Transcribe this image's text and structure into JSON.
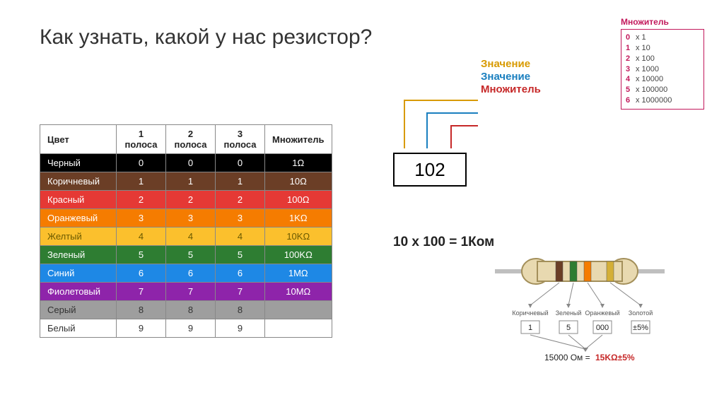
{
  "title": "Как узнать, какой у нас резистор?",
  "multiplier_box": {
    "header": "Множитель",
    "rows": [
      {
        "digit": "0",
        "text": "x 1"
      },
      {
        "digit": "1",
        "text": "x 10"
      },
      {
        "digit": "2",
        "text": "x 100"
      },
      {
        "digit": "3",
        "text": "x 1000"
      },
      {
        "digit": "4",
        "text": "x 10000"
      },
      {
        "digit": "5",
        "text": "x 100000"
      },
      {
        "digit": "6",
        "text": "x 1000000"
      }
    ],
    "border_color": "#c2185b",
    "digit_color": "#c2185b"
  },
  "color_table": {
    "columns": [
      "Цвет",
      "1 полоса",
      "2 полоса",
      "3 полоса",
      "Множитель"
    ],
    "rows": [
      {
        "name": "Черный",
        "bg": "#000000",
        "fg": "#ffffff",
        "b1": "0",
        "b2": "0",
        "b3": "0",
        "mult": "1Ω"
      },
      {
        "name": "Коричневый",
        "bg": "#6b3e26",
        "fg": "#ffffff",
        "b1": "1",
        "b2": "1",
        "b3": "1",
        "mult": "10Ω"
      },
      {
        "name": "Красный",
        "bg": "#e53935",
        "fg": "#ffffff",
        "b1": "2",
        "b2": "2",
        "b3": "2",
        "mult": "100Ω"
      },
      {
        "name": "Оранжевый",
        "bg": "#f57c00",
        "fg": "#ffffff",
        "b1": "3",
        "b2": "3",
        "b3": "3",
        "mult": "1KΩ"
      },
      {
        "name": "Желтый",
        "bg": "#fbc02d",
        "fg": "#6b5a00",
        "b1": "4",
        "b2": "4",
        "b3": "4",
        "mult": "10KΩ"
      },
      {
        "name": "Зеленый",
        "bg": "#2e7d32",
        "fg": "#ffffff",
        "b1": "5",
        "b2": "5",
        "b3": "5",
        "mult": "100KΩ"
      },
      {
        "name": "Синий",
        "bg": "#1e88e5",
        "fg": "#ffffff",
        "b1": "6",
        "b2": "6",
        "b3": "6",
        "mult": "1MΩ"
      },
      {
        "name": "Фиолетовый",
        "bg": "#8e24aa",
        "fg": "#ffffff",
        "b1": "7",
        "b2": "7",
        "b3": "7",
        "mult": "10MΩ"
      },
      {
        "name": "Серый",
        "bg": "#9e9e9e",
        "fg": "#333333",
        "b1": "8",
        "b2": "8",
        "b3": "8",
        "mult": ""
      },
      {
        "name": "Белый",
        "bg": "#ffffff",
        "fg": "#333333",
        "b1": "9",
        "b2": "9",
        "b3": "9",
        "mult": ""
      }
    ]
  },
  "smd": {
    "value": "102",
    "labels": {
      "digit1": {
        "text": "Значение",
        "color": "#d89a00"
      },
      "digit2": {
        "text": "Значение",
        "color": "#1a7fbf"
      },
      "mult": {
        "text": "Множитель",
        "color": "#c62828"
      }
    }
  },
  "equation": "10 х 100 = 1Ком",
  "resistor": {
    "body_color": "#e8d9b0",
    "body_stroke": "#a38f5a",
    "lead_color": "#bfbfbf",
    "bands": [
      {
        "color": "#6b3e26",
        "label": "Коричневый",
        "value": "1"
      },
      {
        "color": "#2e7d32",
        "label": "Зеленый",
        "value": "5"
      },
      {
        "color": "#f57c00",
        "label": "Оранжевый",
        "value": "000"
      },
      {
        "color": "#d4af37",
        "label": "Золотой",
        "value": "±5%"
      }
    ],
    "total_label": "15000 Ом =",
    "total_value": "15KΩ±5%",
    "arrow_color": "#888888"
  }
}
